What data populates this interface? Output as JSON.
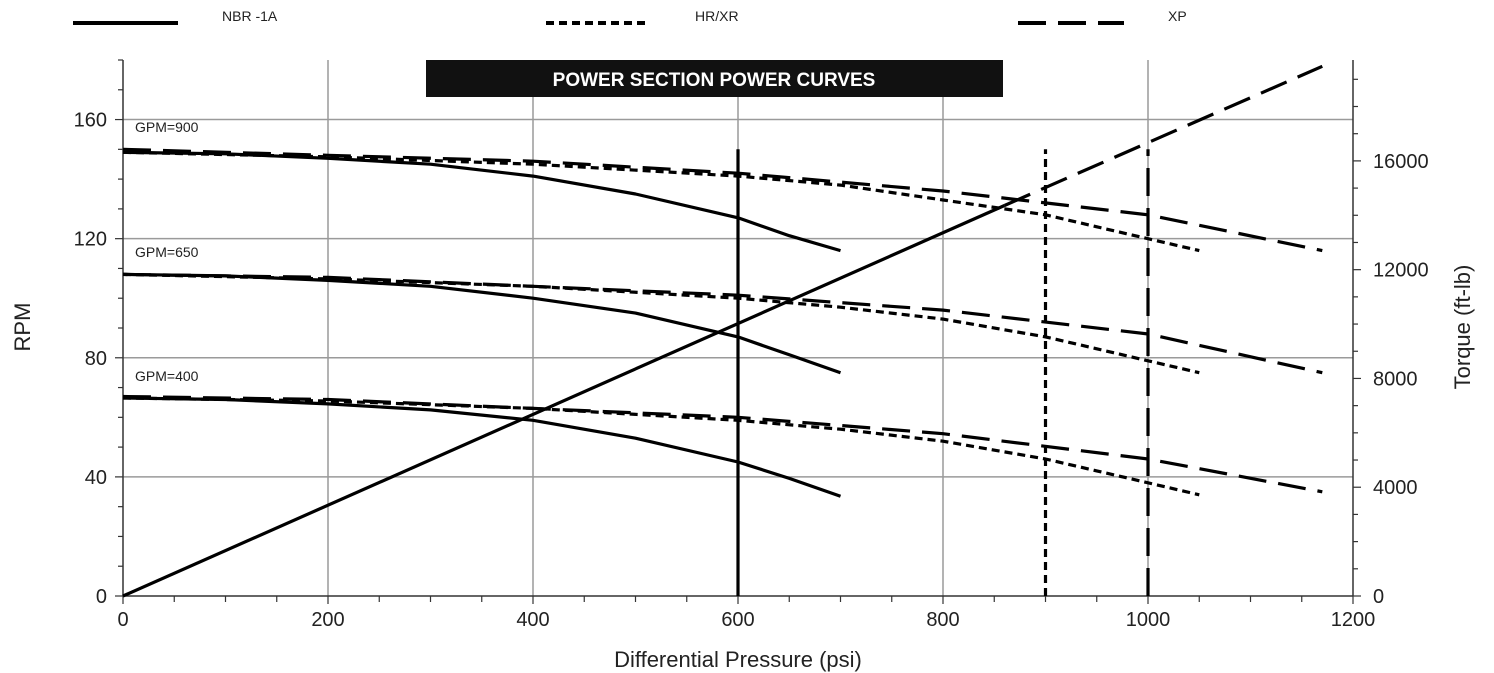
{
  "chart_data": {
    "type": "line",
    "title": "POWER SECTION POWER CURVES",
    "xlabel": "Differential Pressure (psi)",
    "ylabel": "RPM",
    "y2label": "Torque (ft-lb)",
    "xlim": [
      0,
      1200
    ],
    "ylim": [
      0,
      180
    ],
    "y2lim": [
      0,
      19710
    ],
    "xticks": [
      0,
      200,
      400,
      600,
      800,
      1000,
      1200
    ],
    "yticks": [
      0,
      40,
      80,
      120,
      160
    ],
    "y2ticks": [
      0,
      4000,
      8000,
      12000,
      16000
    ],
    "grid": true,
    "legend_position": "top",
    "legend": [
      {
        "label": "NBR  -1A",
        "style": "solid"
      },
      {
        "label": "HR/XR",
        "style": "dotted"
      },
      {
        "label": "XP",
        "style": "long-dash"
      }
    ],
    "annotations": [
      {
        "text": "GPM=900",
        "x": 10,
        "y": 163
      },
      {
        "text": "GPM=650",
        "x": 10,
        "y": 121
      },
      {
        "text": "GPM=400",
        "x": 10,
        "y": 80
      }
    ],
    "series": [
      {
        "label": "GPM=900",
        "style": "solid",
        "axis": "rpm",
        "x": [
          0,
          100,
          200,
          300,
          400,
          500,
          600,
          650,
          700
        ],
        "y": [
          149,
          148.5,
          147,
          145,
          141,
          135,
          127,
          121,
          116
        ]
      },
      {
        "label": "GPM=900",
        "style": "dotted",
        "axis": "rpm",
        "x": [
          0,
          200,
          400,
          600,
          700,
          800,
          900,
          950,
          1000,
          1050
        ],
        "y": [
          149,
          147.5,
          145,
          141,
          138,
          133,
          128,
          124,
          120,
          116
        ]
      },
      {
        "label": "GPM=900",
        "style": "long-dash",
        "axis": "rpm",
        "x": [
          0,
          200,
          400,
          600,
          800,
          1000,
          1170
        ],
        "y": [
          150,
          148,
          146,
          142,
          136,
          128,
          116
        ]
      },
      {
        "label": "GPM=650",
        "style": "solid",
        "axis": "rpm",
        "x": [
          0,
          100,
          200,
          300,
          400,
          500,
          600,
          650,
          700
        ],
        "y": [
          108,
          107.5,
          106,
          104,
          100,
          95,
          87,
          81,
          75
        ]
      },
      {
        "label": "GPM=650",
        "style": "dotted",
        "axis": "rpm",
        "x": [
          0,
          200,
          400,
          600,
          700,
          800,
          900,
          950,
          1000,
          1050
        ],
        "y": [
          108,
          106.5,
          104,
          100,
          97,
          93,
          87,
          83,
          79,
          75
        ]
      },
      {
        "label": "GPM=650",
        "style": "long-dash",
        "axis": "rpm",
        "x": [
          0,
          200,
          400,
          600,
          800,
          1000,
          1170
        ],
        "y": [
          108,
          107,
          104,
          101,
          96,
          88,
          75
        ]
      },
      {
        "label": "GPM=400",
        "style": "solid",
        "axis": "rpm",
        "x": [
          0,
          100,
          200,
          300,
          400,
          500,
          600,
          650,
          700
        ],
        "y": [
          66.5,
          66,
          64.5,
          62.5,
          59,
          53,
          45,
          39.5,
          33.5
        ]
      },
      {
        "label": "GPM=400",
        "style": "dotted",
        "axis": "rpm",
        "x": [
          0,
          200,
          400,
          600,
          700,
          800,
          900,
          950,
          1000,
          1050
        ],
        "y": [
          66.5,
          65.5,
          63,
          59,
          56,
          52,
          46,
          42,
          38,
          34
        ]
      },
      {
        "label": "GPM=400",
        "style": "long-dash",
        "axis": "rpm",
        "x": [
          0,
          200,
          400,
          600,
          800,
          1000,
          1170
        ],
        "y": [
          67,
          66,
          63,
          60,
          54.5,
          46,
          35
        ]
      },
      {
        "label": "Torque",
        "style": "solid",
        "axis": "torque",
        "x": [
          0,
          860
        ],
        "y": [
          0,
          14360
        ]
      },
      {
        "label": "Torque",
        "style": "long-dash",
        "axis": "torque",
        "x": [
          860,
          1170
        ],
        "y": [
          14360,
          19480
        ]
      },
      {
        "label": "NBR  -1A limit",
        "style": "solid",
        "axis": "rpm",
        "x": [
          600,
          600
        ],
        "y": [
          0,
          150
        ]
      },
      {
        "label": "HR/XR limit",
        "style": "dotted",
        "axis": "rpm",
        "x": [
          900,
          900
        ],
        "y": [
          0,
          150
        ]
      },
      {
        "label": "XP limit",
        "style": "long-dash",
        "axis": "rpm",
        "x": [
          1000,
          1000
        ],
        "y": [
          0,
          150
        ]
      }
    ]
  }
}
